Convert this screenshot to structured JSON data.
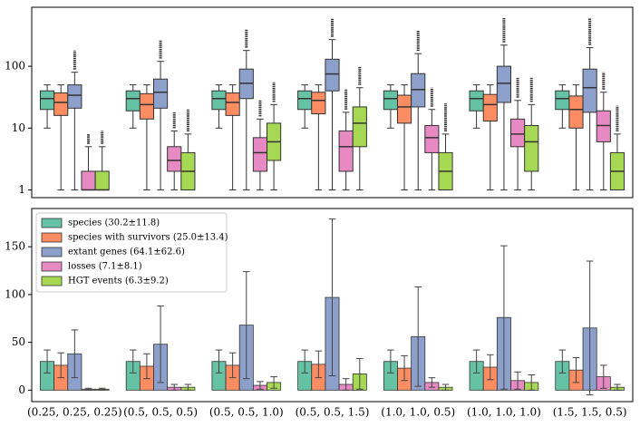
{
  "chart_data": [
    {
      "type": "box",
      "log": true,
      "ylim": [
        0.75,
        900
      ],
      "yticks": [
        1,
        10,
        100
      ],
      "series": [
        {
          "color": "#66c2a5",
          "boxes": [
            {
              "whislo": 10,
              "q1": 20,
              "med": 30,
              "q3": 40,
              "whishi": 50
            },
            {
              "whislo": 10,
              "q1": 19,
              "med": 30,
              "q3": 40,
              "whishi": 50
            },
            {
              "whislo": 10,
              "q1": 20,
              "med": 30,
              "q3": 40,
              "whishi": 50
            },
            {
              "whislo": 10,
              "q1": 20,
              "med": 30,
              "q3": 40,
              "whishi": 50
            },
            {
              "whislo": 10,
              "q1": 20,
              "med": 30,
              "q3": 40,
              "whishi": 50
            },
            {
              "whislo": 10,
              "q1": 19,
              "med": 30,
              "q3": 40,
              "whishi": 50
            },
            {
              "whislo": 10,
              "q1": 20,
              "med": 30,
              "q3": 40,
              "whishi": 50
            }
          ]
        },
        {
          "color": "#fc8d62",
          "boxes": [
            {
              "whislo": 1,
              "q1": 16,
              "med": 26,
              "q3": 37,
              "whishi": 50
            },
            {
              "whislo": 1,
              "q1": 14,
              "med": 24,
              "q3": 36,
              "whishi": 50
            },
            {
              "whislo": 1,
              "q1": 16,
              "med": 26,
              "q3": 37,
              "whishi": 50
            },
            {
              "whislo": 1,
              "q1": 17,
              "med": 28,
              "q3": 38,
              "whishi": 50
            },
            {
              "whislo": 1,
              "q1": 12,
              "med": 22,
              "q3": 34,
              "whishi": 50
            },
            {
              "whislo": 1,
              "q1": 13,
              "med": 24,
              "q3": 35,
              "whishi": 50
            },
            {
              "whislo": 1,
              "q1": 10,
              "med": 20,
              "q3": 33,
              "whishi": 50
            }
          ]
        },
        {
          "color": "#8da0cb",
          "boxes": [
            {
              "whislo": 1,
              "q1": 21,
              "med": 34,
              "q3": 50,
              "whishi": 80,
              "flier_max": 180
            },
            {
              "whislo": 1,
              "q1": 21,
              "med": 38,
              "q3": 62,
              "whishi": 120,
              "flier_max": 260
            },
            {
              "whislo": 1,
              "q1": 30,
              "med": 53,
              "q3": 90,
              "whishi": 180,
              "flier_max": 400
            },
            {
              "whislo": 1,
              "q1": 40,
              "med": 75,
              "q3": 130,
              "whishi": 270,
              "flier_max": 600
            },
            {
              "whislo": 1,
              "q1": 22,
              "med": 42,
              "q3": 76,
              "whishi": 160,
              "flier_max": 380
            },
            {
              "whislo": 1,
              "q1": 26,
              "med": 53,
              "q3": 100,
              "whishi": 220,
              "flier_max": 600
            },
            {
              "whislo": 1,
              "q1": 18,
              "med": 45,
              "q3": 90,
              "whishi": 200,
              "flier_max": 600
            }
          ]
        },
        {
          "color": "#e78ac3",
          "boxes": [
            {
              "whislo": 1,
              "q1": 1,
              "med": 1,
              "q3": 2,
              "whishi": 5,
              "flier_max": 8
            },
            {
              "whislo": 1,
              "q1": 2,
              "med": 3,
              "q3": 5,
              "whishi": 9,
              "flier_max": 18
            },
            {
              "whislo": 1,
              "q1": 2,
              "med": 4,
              "q3": 7,
              "whishi": 14,
              "flier_max": 28
            },
            {
              "whislo": 1,
              "q1": 2,
              "med": 5,
              "q3": 9,
              "whishi": 18,
              "flier_max": 42
            },
            {
              "whislo": 1,
              "q1": 4,
              "med": 7,
              "q3": 11,
              "whishi": 20,
              "flier_max": 45
            },
            {
              "whislo": 1,
              "q1": 5,
              "med": 8,
              "q3": 14,
              "whishi": 28,
              "flier_max": 65
            },
            {
              "whislo": 1,
              "q1": 6,
              "med": 11,
              "q3": 19,
              "whishi": 38,
              "flier_max": 80
            }
          ]
        },
        {
          "color": "#a6d854",
          "boxes": [
            {
              "whislo": 1,
              "q1": 1,
              "med": 1,
              "q3": 2,
              "whishi": 5,
              "flier_max": 9
            },
            {
              "whislo": 1,
              "q1": 1,
              "med": 2,
              "q3": 4,
              "whishi": 8,
              "flier_max": 20
            },
            {
              "whislo": 1,
              "q1": 3,
              "med": 6,
              "q3": 12,
              "whishi": 24,
              "flier_max": 55
            },
            {
              "whislo": 1,
              "q1": 5,
              "med": 12,
              "q3": 22,
              "whishi": 45,
              "flier_max": 100
            },
            {
              "whislo": 1,
              "q1": 1,
              "med": 2,
              "q3": 4,
              "whishi": 8,
              "flier_max": 25
            },
            {
              "whislo": 1,
              "q1": 2,
              "med": 6,
              "q3": 11,
              "whishi": 24,
              "flier_max": 65
            },
            {
              "whislo": 1,
              "q1": 1,
              "med": 2,
              "q3": 4,
              "whishi": 8,
              "flier_max": 23
            }
          ]
        }
      ]
    },
    {
      "type": "bar",
      "ylim": [
        -12,
        190
      ],
      "yticks": [
        0,
        50,
        100,
        150
      ],
      "legend": "upper left",
      "categories": [
        "(0.25, 0.25, 0.25)",
        "(0.5, 0.5, 0.5)",
        "(0.5, 0.5, 1.0)",
        "(0.5, 0.5, 1.5)",
        "(1.0, 1.0, 0.5)",
        "(1.0, 1.0, 1.0)",
        "(1.5, 1.5, 0.5)"
      ],
      "series": [
        {
          "name": "species (30.2±11.8)",
          "color": "#66c2a5",
          "values": [
            30,
            30,
            30,
            30,
            30,
            30,
            30
          ],
          "errors": [
            12,
            12,
            12,
            12,
            12,
            12,
            12
          ]
        },
        {
          "name": "species with survivors (25.0±13.4)",
          "color": "#fc8d62",
          "values": [
            26,
            25,
            26,
            27,
            23,
            24,
            21
          ],
          "errors": [
            13,
            13,
            13,
            14,
            13,
            13,
            13
          ]
        },
        {
          "name": "extant genes (64.1±62.6)",
          "color": "#8da0cb",
          "values": [
            38,
            48,
            68,
            97,
            56,
            76,
            65
          ],
          "errors": [
            25,
            40,
            56,
            82,
            52,
            75,
            70
          ]
        },
        {
          "name": "losses (7.1±8.1)",
          "color": "#e78ac3",
          "values": [
            1,
            3,
            5,
            6,
            8,
            10,
            14
          ],
          "errors": [
            1,
            3,
            4,
            6,
            5,
            9,
            12
          ]
        },
        {
          "name": "HGT events (6.3±9.2)",
          "color": "#a6d854",
          "values": [
            1,
            3,
            8,
            17,
            3,
            8,
            3
          ],
          "errors": [
            1,
            3,
            6,
            16,
            3,
            8,
            3
          ]
        }
      ]
    }
  ]
}
